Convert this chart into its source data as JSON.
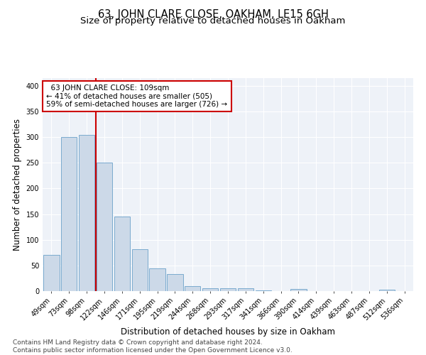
{
  "title": "63, JOHN CLARE CLOSE, OAKHAM, LE15 6GH",
  "subtitle": "Size of property relative to detached houses in Oakham",
  "xlabel": "Distribution of detached houses by size in Oakham",
  "ylabel": "Number of detached properties",
  "bar_labels": [
    "49sqm",
    "73sqm",
    "98sqm",
    "122sqm",
    "146sqm",
    "171sqm",
    "195sqm",
    "219sqm",
    "244sqm",
    "268sqm",
    "293sqm",
    "317sqm",
    "341sqm",
    "366sqm",
    "390sqm",
    "414sqm",
    "439sqm",
    "463sqm",
    "487sqm",
    "512sqm",
    "536sqm"
  ],
  "bar_values": [
    70,
    300,
    305,
    250,
    145,
    82,
    44,
    33,
    9,
    6,
    6,
    5,
    1,
    0,
    4,
    0,
    0,
    0,
    0,
    3,
    0
  ],
  "bar_color": "#ccd9e8",
  "bar_edge_color": "#7aabcf",
  "red_line_x": 2.5,
  "annotation_text": "  63 JOHN CLARE CLOSE: 109sqm  \n← 41% of detached houses are smaller (505)\n59% of semi-detached houses are larger (726) →",
  "annotation_box_color": "white",
  "annotation_box_edge": "#cc0000",
  "red_line_color": "#cc0000",
  "ylim": [
    0,
    415
  ],
  "yticks": [
    0,
    50,
    100,
    150,
    200,
    250,
    300,
    350,
    400
  ],
  "bg_color": "#eef2f8",
  "grid_color": "#ffffff",
  "footer_text": "Contains HM Land Registry data © Crown copyright and database right 2024.\nContains public sector information licensed under the Open Government Licence v3.0.",
  "title_fontsize": 10.5,
  "subtitle_fontsize": 9.5,
  "xlabel_fontsize": 8.5,
  "ylabel_fontsize": 8.5,
  "tick_fontsize": 7,
  "annotation_fontsize": 7.5,
  "footer_fontsize": 6.5
}
